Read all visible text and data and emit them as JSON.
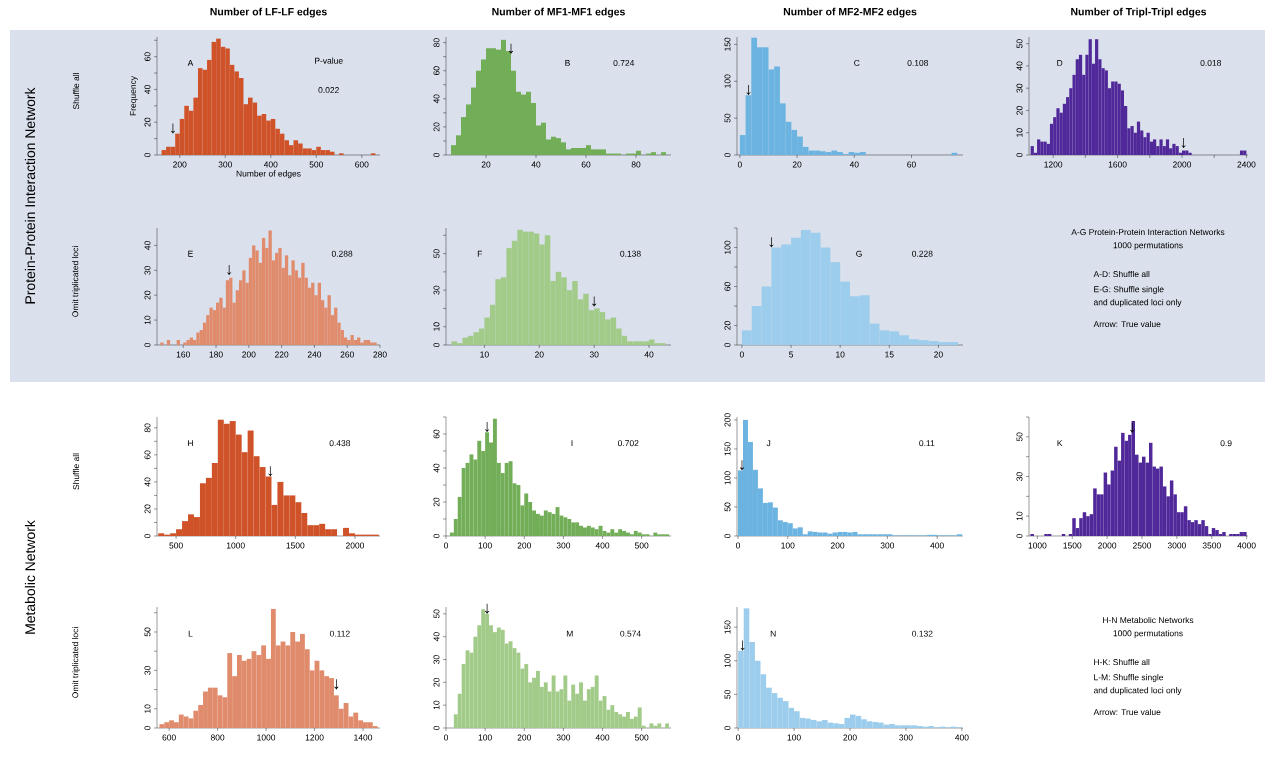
{
  "chart_data": [
    {
      "type": "other",
      "annotations": [
        "Protein-Protein Interaction Network",
        "Shuffle all",
        "Omit triplicated loci"
      ]
    },
    {
      "type": "histogram",
      "title": "Number of LF-LF edges",
      "xlabel": "Number of edges",
      "ylabel": "Frequency",
      "color": "#d05228",
      "bins": [
        160,
        170,
        180,
        190,
        200,
        210,
        220,
        230,
        240,
        250,
        260,
        270,
        280,
        290,
        300,
        310,
        320,
        330,
        340,
        350,
        360,
        370,
        380,
        390,
        400,
        410,
        420,
        430,
        440,
        450,
        460,
        470,
        480,
        490,
        500,
        510,
        520,
        530,
        540,
        550,
        560,
        570,
        580,
        590,
        600,
        610,
        620,
        630
      ],
      "values": [
        3,
        5,
        5,
        13,
        22,
        30,
        27,
        35,
        53,
        52,
        58,
        69,
        71,
        66,
        65,
        55,
        51,
        47,
        31,
        35,
        32,
        24,
        25,
        21,
        22,
        16,
        13,
        9,
        6,
        9,
        7,
        4,
        4,
        3,
        5,
        3,
        3,
        2,
        0,
        1,
        0,
        0,
        0,
        0,
        0,
        0,
        1
      ],
      "xlim": [
        150,
        640
      ],
      "xticks": [
        200,
        300,
        400,
        500,
        600
      ],
      "ylim": [
        0,
        72
      ],
      "yticks": [
        0,
        {
          "value": 10,
          "label": null
        },
        20,
        {
          "value": 30,
          "label": null
        },
        40,
        {
          "value": 50,
          "label": null
        },
        60,
        {
          "value": 70,
          "label": null
        }
      ],
      "annotations": [
        "A",
        "P-value",
        "0.022",
        {
          "text": "↓",
          "x": 185,
          "y": 13
        }
      ]
    },
    {
      "type": "histogram",
      "title": "Number of MF1-MF1 edges",
      "color": "#72ad57",
      "bins": [
        6,
        8,
        10,
        12,
        14,
        16,
        18,
        20,
        22,
        24,
        26,
        28,
        30,
        32,
        34,
        36,
        38,
        40,
        42,
        44,
        46,
        48,
        50,
        52,
        54,
        56,
        58,
        60,
        62,
        64,
        66,
        68,
        70,
        72,
        74,
        76,
        78,
        80,
        82,
        84,
        86,
        88,
        90,
        92
      ],
      "values": [
        7,
        14,
        27,
        36,
        48,
        60,
        68,
        76,
        76,
        75,
        82,
        74,
        60,
        45,
        43,
        45,
        37,
        21,
        23,
        11,
        13,
        12,
        9,
        4,
        5,
        5,
        5,
        7,
        4,
        4,
        4,
        1,
        1,
        1,
        0,
        1,
        1,
        3,
        0,
        1,
        2,
        0,
        2
      ],
      "xlim": [
        4,
        94
      ],
      "xticks": [
        20,
        40,
        60,
        80
      ],
      "ylim": [
        0,
        84
      ],
      "yticks": [
        0,
        {
          "value": 10,
          "label": null
        },
        20,
        {
          "value": 30,
          "label": null
        },
        40,
        {
          "value": 50,
          "label": null
        },
        60,
        {
          "value": 70,
          "label": null
        },
        80
      ],
      "annotations": [
        "B",
        "0.724",
        {
          "text": "↓",
          "x": 30,
          "y": 72
        }
      ]
    },
    {
      "type": "histogram",
      "title": "Number of MF2-MF2 edges",
      "color": "#6bb3e0",
      "bins": [
        0,
        2,
        4,
        6,
        8,
        10,
        12,
        14,
        16,
        18,
        20,
        22,
        24,
        26,
        28,
        30,
        32,
        34,
        36,
        38,
        40,
        42,
        44,
        46,
        48,
        50,
        52,
        54,
        56,
        58,
        60,
        62,
        64,
        66,
        68,
        70,
        72,
        74,
        76
      ],
      "values": [
        27,
        81,
        159,
        146,
        146,
        116,
        120,
        70,
        45,
        34,
        25,
        11,
        6,
        6,
        5,
        4,
        6,
        4,
        1,
        4,
        3,
        4,
        0,
        0,
        0,
        0,
        0,
        0,
        0,
        0,
        0,
        0,
        0,
        0,
        0,
        0,
        0,
        3
      ],
      "xlim": [
        -1,
        78
      ],
      "xticks": [
        0,
        20,
        40,
        60
      ],
      "ylim": [
        0,
        160
      ],
      "yticks": [
        0,
        50,
        100,
        150
      ],
      "annotations": [
        "C",
        "0.108",
        {
          "text": "↓",
          "x": 3,
          "y": 81
        }
      ]
    },
    {
      "type": "histogram",
      "title": "Number of Tripl-Tripl edges",
      "color": "#50289a",
      "bins": [
        1060,
        1080,
        1100,
        1120,
        1140,
        1160,
        1180,
        1200,
        1220,
        1240,
        1260,
        1280,
        1300,
        1320,
        1340,
        1360,
        1380,
        1400,
        1420,
        1440,
        1460,
        1480,
        1500,
        1520,
        1540,
        1560,
        1580,
        1600,
        1620,
        1640,
        1660,
        1680,
        1700,
        1720,
        1740,
        1760,
        1780,
        1800,
        1820,
        1840,
        1860,
        1880,
        1900,
        1920,
        1940,
        1960,
        1980,
        2000,
        2020,
        2040,
        2060,
        2080,
        2100,
        2120,
        2140,
        2160,
        2180,
        2200,
        2220,
        2240,
        2260,
        2280,
        2300,
        2320,
        2340,
        2360,
        2380,
        2400
      ],
      "values": [
        4,
        1,
        7,
        6,
        6,
        5,
        14,
        17,
        21,
        19,
        23,
        26,
        30,
        36,
        43,
        45,
        36,
        45,
        52,
        41,
        52,
        43,
        39,
        38,
        30,
        33,
        33,
        32,
        29,
        22,
        12,
        13,
        10,
        15,
        11,
        8,
        10,
        6,
        7,
        4,
        7,
        4,
        7,
        3,
        5,
        4,
        1,
        2,
        2,
        1,
        0,
        0,
        0,
        0,
        0,
        0,
        0,
        0,
        0,
        0,
        0,
        0,
        0,
        0,
        0,
        2,
        2
      ],
      "xlim": [
        1050,
        2410
      ],
      "xticks": [
        1200,
        {
          "value": 1400,
          "label": null
        },
        1600,
        {
          "value": 1800,
          "label": null
        },
        2000,
        {
          "value": 2200,
          "label": null
        },
        2400
      ],
      "ylim": [
        0,
        53
      ],
      "yticks": [
        0,
        10,
        20,
        30,
        40,
        50
      ],
      "annotations": [
        "D",
        "0.018",
        {
          "text": "↓",
          "x": 2010,
          "y": 3
        }
      ]
    },
    {
      "type": "histogram",
      "color": "#e08b6c",
      "bins": [
        146,
        148,
        150,
        152,
        154,
        156,
        158,
        160,
        162,
        164,
        166,
        168,
        170,
        172,
        174,
        176,
        178,
        180,
        182,
        184,
        186,
        188,
        190,
        192,
        194,
        196,
        198,
        200,
        202,
        204,
        206,
        208,
        210,
        212,
        214,
        216,
        218,
        220,
        222,
        224,
        226,
        228,
        230,
        232,
        234,
        236,
        238,
        240,
        242,
        244,
        246,
        248,
        250,
        252,
        254,
        256,
        258,
        260,
        262,
        264,
        266,
        268,
        270,
        272,
        274,
        276,
        278
      ],
      "values": [
        1,
        0,
        2,
        0,
        0,
        2,
        0,
        1,
        2,
        3,
        2,
        5,
        6,
        9,
        12,
        15,
        14,
        17,
        19,
        15,
        26,
        27,
        17,
        22,
        26,
        30,
        25,
        35,
        40,
        38,
        33,
        43,
        39,
        46,
        34,
        37,
        39,
        31,
        36,
        28,
        34,
        30,
        27,
        33,
        27,
        23,
        25,
        20,
        25,
        18,
        15,
        20,
        12,
        15,
        9,
        6,
        3,
        2,
        4,
        2,
        3,
        1,
        2,
        2,
        1,
        1
      ],
      "xlim": [
        144,
        280
      ],
      "xticks": [
        160,
        180,
        200,
        220,
        240,
        260,
        280
      ],
      "ylim": [
        0,
        47
      ],
      "yticks": [
        0,
        10,
        20,
        30,
        40
      ],
      "annotations": [
        "E",
        "0.288",
        {
          "text": "↓",
          "x": 188,
          "y": 28
        }
      ]
    },
    {
      "type": "histogram",
      "color": "#a2cb8a",
      "bins": [
        4,
        5,
        6,
        7,
        8,
        9,
        10,
        11,
        12,
        13,
        14,
        15,
        16,
        17,
        18,
        19,
        20,
        21,
        22,
        23,
        24,
        25,
        26,
        27,
        28,
        29,
        30,
        31,
        32,
        33,
        34,
        35,
        36,
        37,
        38,
        39,
        40,
        41,
        42,
        43
      ],
      "values": [
        2,
        1,
        4,
        5,
        7,
        9,
        15,
        22,
        36,
        37,
        53,
        57,
        63,
        62,
        62,
        61,
        55,
        60,
        35,
        40,
        37,
        30,
        35,
        25,
        28,
        19,
        20,
        18,
        14,
        15,
        9,
        5,
        2,
        2,
        2,
        2,
        3,
        1,
        1
      ],
      "xlim": [
        3,
        44
      ],
      "xticks": [
        10,
        20,
        30,
        40
      ],
      "ylim": [
        0,
        64
      ],
      "yticks": [
        0,
        10,
        {
          "value": 20,
          "label": null
        },
        30,
        {
          "value": 40,
          "label": null
        },
        50,
        {
          "value": 60,
          "label": null
        }
      ],
      "annotations": [
        "F",
        "0.138",
        {
          "text": "↓",
          "x": 30,
          "y": 21
        }
      ]
    },
    {
      "type": "histogram",
      "color": "#9dcdec",
      "bins": [
        0,
        1,
        2,
        3,
        4,
        5,
        6,
        7,
        8,
        9,
        10,
        11,
        12,
        13,
        14,
        15,
        16,
        17,
        18,
        19,
        20,
        21,
        22
      ],
      "values": [
        15,
        40,
        60,
        100,
        103,
        110,
        118,
        115,
        100,
        85,
        65,
        50,
        51,
        22,
        15,
        14,
        10,
        6,
        5,
        4,
        3,
        3
      ],
      "xlim": [
        -0.5,
        22.5
      ],
      "xticks": [
        0,
        5,
        10,
        15,
        20
      ],
      "ylim": [
        0,
        120
      ],
      "yticks": [
        0,
        20,
        {
          "value": 40,
          "label": null
        },
        60,
        {
          "value": 80,
          "label": null
        },
        100,
        {
          "value": 120,
          "label": null
        }
      ],
      "annotations": [
        "G",
        "0.228",
        {
          "text": "↓",
          "x": 3,
          "y": 100
        }
      ]
    },
    {
      "type": "other",
      "annotations": [
        "A-G Protein-Protein Interaction Networks",
        "1000 permutations",
        "A-D: Shuffle all",
        "E-G: Shuffle single",
        "and duplicated loci only",
        "Arrow: True value"
      ]
    },
    {
      "type": "other",
      "annotations": [
        "Metabolic Network",
        "Shuffle all",
        "Omit triplicated loci"
      ]
    },
    {
      "type": "histogram",
      "color": "#d05228",
      "bins": [
        350,
        400,
        450,
        500,
        550,
        600,
        650,
        700,
        750,
        800,
        850,
        900,
        950,
        1000,
        1050,
        1100,
        1150,
        1200,
        1250,
        1300,
        1350,
        1400,
        1450,
        1500,
        1550,
        1600,
        1650,
        1700,
        1750,
        1800,
        1850,
        1900,
        1950,
        2000,
        2050,
        2100,
        2150,
        2200
      ],
      "values": [
        2,
        1,
        2,
        5,
        11,
        16,
        14,
        39,
        43,
        54,
        86,
        83,
        85,
        75,
        62,
        78,
        59,
        51,
        44,
        23,
        40,
        30,
        30,
        25,
        17,
        8,
        8,
        9,
        5,
        5,
        0,
        6,
        2,
        1,
        1,
        1,
        1
      ],
      "xlim": [
        340,
        2210
      ],
      "xticks": [
        500,
        1000,
        1500,
        2000
      ],
      "ylim": [
        0,
        88
      ],
      "yticks": [
        0,
        {
          "value": 10,
          "label": null
        },
        20,
        {
          "value": 30,
          "label": null
        },
        40,
        {
          "value": 50,
          "label": null
        },
        60,
        {
          "value": 70,
          "label": null
        },
        80
      ],
      "annotations": [
        "H",
        "0.438",
        {
          "text": "↓",
          "x": 1290,
          "y": 44
        }
      ]
    },
    {
      "type": "histogram",
      "color": "#72ad57",
      "bins": [
        10,
        20,
        30,
        40,
        50,
        60,
        70,
        80,
        90,
        100,
        110,
        120,
        130,
        140,
        150,
        160,
        170,
        180,
        190,
        200,
        210,
        220,
        230,
        240,
        250,
        260,
        270,
        280,
        290,
        300,
        310,
        320,
        330,
        340,
        350,
        360,
        370,
        380,
        390,
        400,
        410,
        420,
        430,
        440,
        450,
        460,
        470,
        480,
        490,
        500,
        510,
        520,
        530,
        540,
        550,
        560,
        570
      ],
      "values": [
        2,
        10,
        23,
        40,
        43,
        48,
        45,
        56,
        50,
        61,
        55,
        69,
        43,
        37,
        43,
        44,
        31,
        30,
        18,
        25,
        20,
        15,
        13,
        12,
        15,
        14,
        13,
        17,
        12,
        11,
        10,
        8,
        8,
        6,
        5,
        6,
        5,
        4,
        6,
        3,
        2,
        4,
        2,
        4,
        3,
        2,
        1,
        3,
        2,
        1,
        1,
        0,
        2,
        1,
        1,
        1
      ],
      "xlim": [
        0,
        575
      ],
      "xticks": [
        0,
        100,
        200,
        300,
        400,
        500
      ],
      "ylim": [
        0,
        70
      ],
      "yticks": [
        0,
        {
          "value": 10,
          "label": null
        },
        20,
        {
          "value": 30,
          "label": null
        },
        40,
        {
          "value": 50,
          "label": null
        },
        60,
        {
          "value": 70,
          "label": null
        }
      ],
      "annotations": [
        "I",
        "0.702",
        {
          "text": "↓",
          "x": 105,
          "y": 61
        }
      ]
    },
    {
      "type": "histogram",
      "color": "#6bb3e0",
      "bins": [
        0,
        10,
        20,
        30,
        40,
        50,
        60,
        70,
        80,
        90,
        100,
        110,
        120,
        130,
        140,
        150,
        160,
        170,
        180,
        190,
        200,
        210,
        220,
        230,
        240,
        250,
        260,
        270,
        280,
        290,
        300,
        310,
        320,
        330,
        340,
        350,
        360,
        370,
        380,
        390,
        400,
        410,
        420,
        430,
        440,
        450
      ],
      "values": [
        113,
        200,
        162,
        114,
        82,
        57,
        58,
        49,
        27,
        24,
        22,
        13,
        15,
        3,
        8,
        7,
        6,
        6,
        4,
        6,
        7,
        7,
        6,
        7,
        3,
        3,
        3,
        3,
        3,
        3,
        3,
        1,
        1,
        1,
        1,
        1,
        1,
        1,
        2,
        2,
        1,
        1,
        1,
        1,
        3
      ],
      "xlim": [
        -2,
        452
      ],
      "xticks": [
        0,
        100,
        200,
        300,
        400
      ],
      "ylim": [
        0,
        205
      ],
      "yticks": [
        0,
        50,
        100,
        150,
        200
      ],
      "annotations": [
        "J",
        "0.11",
        {
          "text": "↓",
          "x": 8,
          "y": 113
        }
      ]
    },
    {
      "type": "histogram",
      "color": "#50289a",
      "bins": [
        900,
        950,
        1000,
        1050,
        1100,
        1150,
        1200,
        1250,
        1300,
        1350,
        1400,
        1450,
        1500,
        1550,
        1600,
        1650,
        1700,
        1750,
        1800,
        1850,
        1900,
        1950,
        2000,
        2050,
        2100,
        2150,
        2200,
        2250,
        2300,
        2350,
        2400,
        2450,
        2500,
        2550,
        2600,
        2650,
        2700,
        2750,
        2800,
        2850,
        2900,
        2950,
        3000,
        3050,
        3100,
        3150,
        3200,
        3250,
        3300,
        3350,
        3400,
        3450,
        3500,
        3550,
        3600,
        3650,
        3700,
        3750,
        3800,
        3850,
        3900,
        3950,
        4000
      ],
      "values": [
        1,
        0,
        0,
        0,
        1,
        1,
        0,
        0,
        0,
        1,
        0,
        1,
        9,
        4,
        9,
        12,
        10,
        11,
        24,
        21,
        21,
        32,
        26,
        33,
        45,
        38,
        52,
        48,
        51,
        58,
        41,
        37,
        40,
        37,
        47,
        35,
        34,
        35,
        25,
        20,
        28,
        21,
        12,
        12,
        15,
        8,
        7,
        8,
        6,
        8,
        5,
        1,
        4,
        3,
        1,
        2,
        0,
        1,
        1,
        1,
        2,
        2
      ],
      "xlim": [
        880,
        4020
      ],
      "xticks": [
        1000,
        1500,
        2000,
        2500,
        3000,
        3500,
        4000
      ],
      "ylim": [
        0,
        60
      ],
      "yticks": [
        0,
        10,
        {
          "value": 20,
          "label": null
        },
        30,
        {
          "value": 40,
          "label": null
        },
        50,
        {
          "value": 60,
          "label": null
        }
      ],
      "annotations": [
        "K",
        "0.9",
        {
          "text": "↓",
          "x": 2360,
          "y": 52
        }
      ]
    },
    {
      "type": "histogram",
      "color": "#e08b6c",
      "bins": [
        560,
        580,
        600,
        620,
        640,
        660,
        680,
        700,
        720,
        740,
        760,
        780,
        800,
        820,
        840,
        860,
        880,
        900,
        920,
        940,
        960,
        980,
        1000,
        1020,
        1040,
        1060,
        1080,
        1100,
        1120,
        1140,
        1160,
        1180,
        1200,
        1220,
        1240,
        1260,
        1280,
        1300,
        1320,
        1340,
        1360,
        1380,
        1400,
        1420,
        1440,
        1460
      ],
      "values": [
        2,
        3,
        4,
        3,
        7,
        6,
        5,
        9,
        12,
        19,
        21,
        21,
        17,
        16,
        39,
        27,
        38,
        35,
        36,
        40,
        38,
        43,
        36,
        62,
        43,
        45,
        43,
        50,
        45,
        49,
        41,
        30,
        35,
        30,
        27,
        26,
        17,
        10,
        13,
        6,
        8,
        4,
        3,
        3,
        1
      ],
      "xlim": [
        550,
        1470
      ],
      "xticks": [
        600,
        800,
        1000,
        1200,
        1400
      ],
      "ylim": [
        0,
        63
      ],
      "yticks": [
        0,
        10,
        {
          "value": 20,
          "label": null
        },
        30,
        {
          "value": 40,
          "label": null
        },
        50,
        {
          "value": 60,
          "label": null
        }
      ],
      "annotations": [
        "L",
        "0.112",
        {
          "text": "↓",
          "x": 1290,
          "y": 20
        }
      ]
    },
    {
      "type": "histogram",
      "color": "#a2cb8a",
      "bins": [
        20,
        30,
        40,
        50,
        60,
        70,
        80,
        90,
        100,
        110,
        120,
        130,
        140,
        150,
        160,
        170,
        180,
        190,
        200,
        210,
        220,
        230,
        240,
        250,
        260,
        270,
        280,
        290,
        300,
        310,
        320,
        330,
        340,
        350,
        360,
        370,
        380,
        390,
        400,
        410,
        420,
        430,
        440,
        450,
        460,
        470,
        480,
        490,
        500,
        510,
        520,
        530,
        540,
        550,
        560,
        570
      ],
      "values": [
        6,
        15,
        28,
        34,
        33,
        40,
        45,
        52,
        50,
        45,
        42,
        44,
        43,
        37,
        38,
        35,
        33,
        26,
        28,
        20,
        22,
        25,
        18,
        20,
        16,
        23,
        16,
        17,
        23,
        12,
        19,
        15,
        20,
        12,
        17,
        18,
        23,
        12,
        14,
        8,
        10,
        7,
        6,
        5,
        7,
        4,
        5,
        9,
        1,
        0,
        2,
        1,
        2,
        0,
        2
      ],
      "xlim": [
        0,
        575
      ],
      "xticks": [
        0,
        100,
        200,
        300,
        400,
        500
      ],
      "ylim": [
        0,
        53
      ],
      "yticks": [
        0,
        10,
        20,
        30,
        40,
        50
      ],
      "annotations": [
        "M",
        "0.574",
        {
          "text": "↓",
          "x": 105,
          "y": 50
        }
      ]
    },
    {
      "type": "histogram",
      "color": "#9dcdec",
      "bins": [
        0,
        10,
        20,
        30,
        40,
        50,
        60,
        70,
        80,
        90,
        100,
        110,
        120,
        130,
        140,
        150,
        160,
        170,
        180,
        190,
        200,
        210,
        220,
        230,
        240,
        250,
        260,
        270,
        280,
        290,
        300,
        310,
        320,
        330,
        340,
        350,
        360,
        370,
        380,
        390,
        400
      ],
      "values": [
        115,
        178,
        128,
        100,
        80,
        60,
        52,
        45,
        40,
        30,
        25,
        15,
        14,
        12,
        10,
        12,
        8,
        7,
        6,
        15,
        20,
        18,
        13,
        10,
        9,
        8,
        5,
        6,
        4,
        4,
        4,
        4,
        3,
        2,
        3,
        1,
        2,
        1,
        2,
        1
      ],
      "xlim": [
        -2,
        402
      ],
      "xticks": [
        0,
        100,
        200,
        300,
        400
      ],
      "ylim": [
        0,
        180
      ],
      "yticks": [
        0,
        50,
        100,
        150
      ],
      "annotations": [
        "N",
        "0.132",
        {
          "text": "↓",
          "x": 8,
          "y": 115
        }
      ]
    },
    {
      "type": "other",
      "annotations": [
        "H-N Metabolic Networks",
        "1000 permutations",
        "H-K: Shuffle all",
        "L-M: Shuffle single",
        "and duplicated loci only",
        "Arrow: True value"
      ]
    }
  ]
}
